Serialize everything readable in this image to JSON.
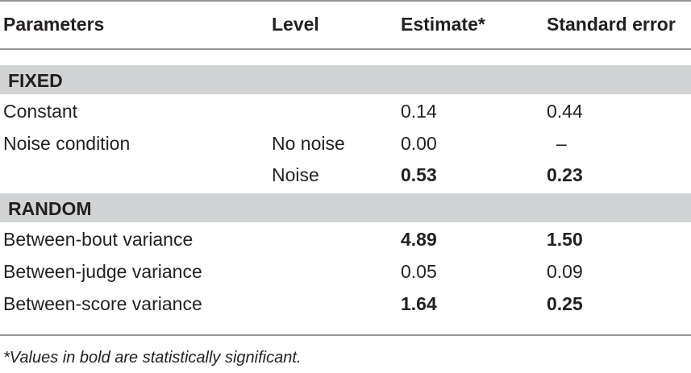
{
  "headers": {
    "parameters": "Parameters",
    "level": "Level",
    "estimate": "Estimate*",
    "standard_error": "Standard error"
  },
  "sections": {
    "fixed": "FIXED",
    "random": "RANDOM"
  },
  "rows": [
    {
      "parameter": "Constant",
      "level": "",
      "estimate": "0.14",
      "standard_error": "0.44",
      "significant": false
    },
    {
      "parameter": "Noise condition",
      "level": "No noise",
      "estimate": "0.00",
      "standard_error": "–",
      "significant": false
    },
    {
      "parameter": "",
      "level": "Noise",
      "estimate": "0.53",
      "standard_error": "0.23",
      "significant": true
    },
    {
      "parameter": "Between-bout variance",
      "level": "",
      "estimate": "4.89",
      "standard_error": "1.50",
      "significant": true
    },
    {
      "parameter": "Between-judge variance",
      "level": "",
      "estimate": "0.05",
      "standard_error": "0.09",
      "significant": false
    },
    {
      "parameter": "Between-score variance",
      "level": "",
      "estimate": "1.64",
      "standard_error": "0.25",
      "significant": true
    }
  ],
  "footnote": "*Values in bold are statistically significant."
}
